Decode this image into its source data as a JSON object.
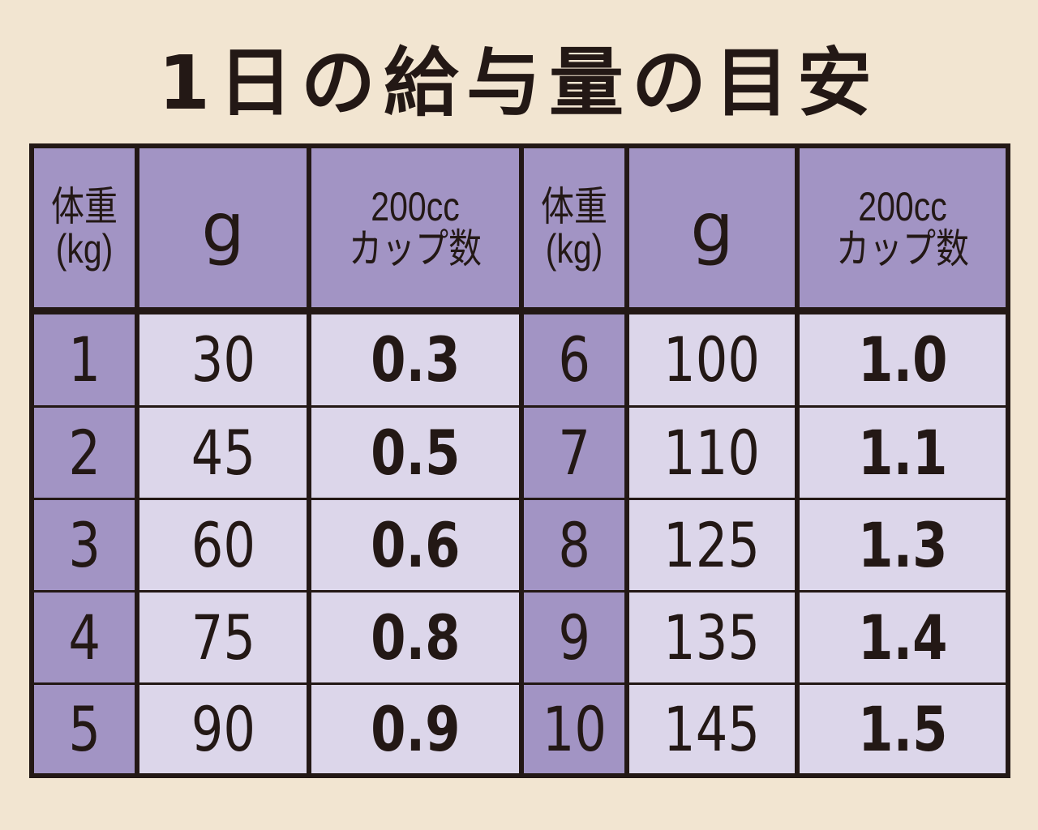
{
  "title": "1日の給与量の目安",
  "header": {
    "weight_line1": "体重",
    "weight_line2": "(kg)",
    "grams": "g",
    "cups_line1": "200cc",
    "cups_line2": "カップ数"
  },
  "rows_left": [
    {
      "kg": "1",
      "g": "30",
      "cups": "0.3"
    },
    {
      "kg": "2",
      "g": "45",
      "cups": "0.5"
    },
    {
      "kg": "3",
      "g": "60",
      "cups": "0.6"
    },
    {
      "kg": "4",
      "g": "75",
      "cups": "0.8"
    },
    {
      "kg": "5",
      "g": "90",
      "cups": "0.9"
    }
  ],
  "rows_right": [
    {
      "kg": "6",
      "g": "100",
      "cups": "1.0"
    },
    {
      "kg": "7",
      "g": "110",
      "cups": "1.1"
    },
    {
      "kg": "8",
      "g": "125",
      "cups": "1.3"
    },
    {
      "kg": "9",
      "g": "135",
      "cups": "1.4"
    },
    {
      "kg": "10",
      "g": "145",
      "cups": "1.5"
    }
  ],
  "colors": {
    "background": "#f2e5d1",
    "header_purple": "#a294c4",
    "cell_light": "#dcd6ea",
    "border_text": "#231815"
  }
}
